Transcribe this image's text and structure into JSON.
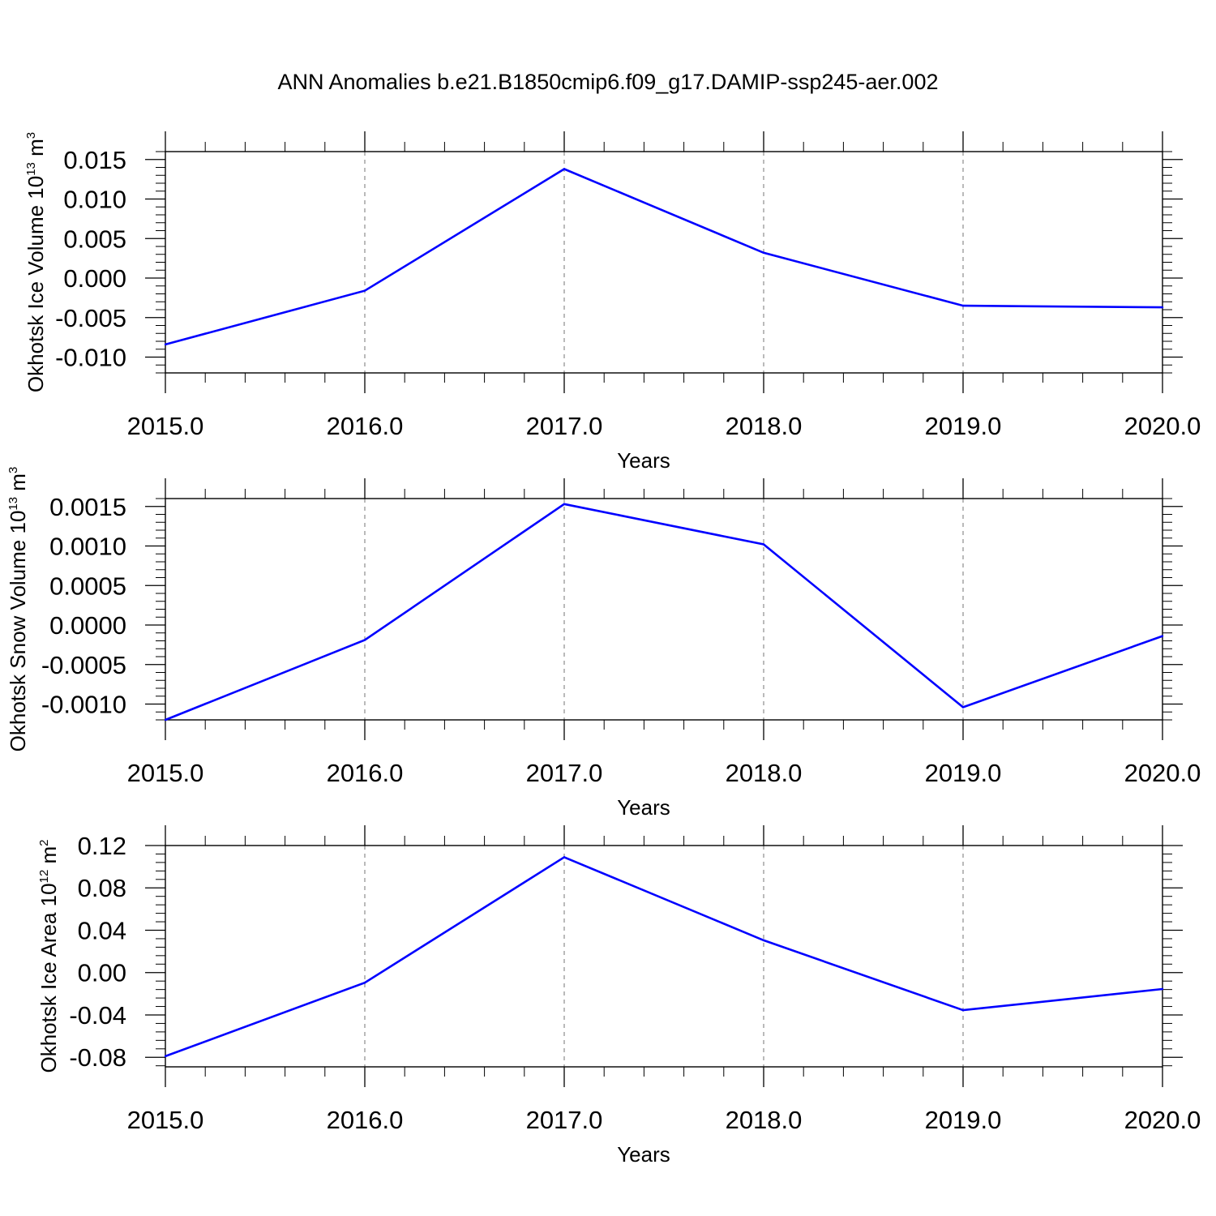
{
  "title": "ANN Anomalies b.e21.B1850cmip6.f09_g17.DAMIP-ssp245-aer.002",
  "colors": {
    "line": "#0000ff",
    "axis": "#000000",
    "grid": "#8c8c8c"
  },
  "chart_data": [
    {
      "type": "line",
      "xlabel": "Years",
      "ylabel": {
        "main": "Okhotsk Ice Volume 10",
        "sup1": "13",
        "unit": " m",
        "sup2": "3"
      },
      "xlim": [
        2015.0,
        2020.0
      ],
      "ylim": [
        -0.012,
        0.016
      ],
      "x_ticks": [
        2015.0,
        2016.0,
        2017.0,
        2018.0,
        2019.0,
        2020.0
      ],
      "x_tick_labels": [
        "2015.0",
        "2016.0",
        "2017.0",
        "2018.0",
        "2019.0",
        "2020.0"
      ],
      "y_ticks": [
        0.015,
        0.01,
        0.005,
        0.0,
        -0.005,
        -0.01
      ],
      "y_tick_labels": [
        "0.015",
        "0.010",
        "0.005",
        "0.000",
        "-0.005",
        "-0.010"
      ],
      "y_minor_step": 0.001,
      "grid": "dashed vertical at major x ticks",
      "x": [
        2015,
        2016,
        2017,
        2018,
        2019,
        2020
      ],
      "y": [
        -0.0084,
        -0.0016,
        0.0138,
        0.0032,
        -0.0035,
        -0.0037
      ]
    },
    {
      "type": "line",
      "xlabel": "Years",
      "ylabel": {
        "main": "Okhotsk Snow Volume 10",
        "sup1": "13",
        "unit": " m",
        "sup2": "3"
      },
      "xlim": [
        2015.0,
        2020.0
      ],
      "ylim": [
        -0.0012,
        0.0016
      ],
      "x_ticks": [
        2015.0,
        2016.0,
        2017.0,
        2018.0,
        2019.0,
        2020.0
      ],
      "x_tick_labels": [
        "2015.0",
        "2016.0",
        "2017.0",
        "2018.0",
        "2019.0",
        "2020.0"
      ],
      "y_ticks": [
        0.0015,
        0.001,
        0.0005,
        0.0,
        -0.0005,
        -0.001
      ],
      "y_tick_labels": [
        "0.0015",
        "0.0010",
        "0.0005",
        "0.0000",
        "-0.0005",
        "-0.0010"
      ],
      "y_minor_step": 0.0001,
      "grid": "dashed vertical at major x ticks",
      "x": [
        2015,
        2016,
        2017,
        2018,
        2019,
        2020
      ],
      "y": [
        -0.0012,
        -0.00019,
        0.00153,
        0.00102,
        -0.00104,
        -0.00014
      ]
    },
    {
      "type": "line",
      "xlabel": "Years",
      "ylabel": {
        "main": "Okhotsk Ice Area 10",
        "sup1": "12",
        "unit": " m",
        "sup2": "2"
      },
      "xlim": [
        2015.0,
        2020.0
      ],
      "ylim": [
        -0.089,
        0.12
      ],
      "x_ticks": [
        2015.0,
        2016.0,
        2017.0,
        2018.0,
        2019.0,
        2020.0
      ],
      "x_tick_labels": [
        "2015.0",
        "2016.0",
        "2017.0",
        "2018.0",
        "2019.0",
        "2020.0"
      ],
      "y_ticks": [
        0.12,
        0.08,
        0.04,
        0.0,
        -0.04,
        -0.08
      ],
      "y_tick_labels": [
        "0.12",
        "0.08",
        "0.04",
        "0.00",
        "-0.04",
        "-0.08"
      ],
      "y_minor_step": 0.008,
      "grid": "dashed vertical at major x ticks",
      "x": [
        2015,
        2016,
        2017,
        2018,
        2019,
        2020
      ],
      "y": [
        -0.079,
        -0.0095,
        0.109,
        0.0305,
        -0.0355,
        -0.0155
      ]
    }
  ]
}
